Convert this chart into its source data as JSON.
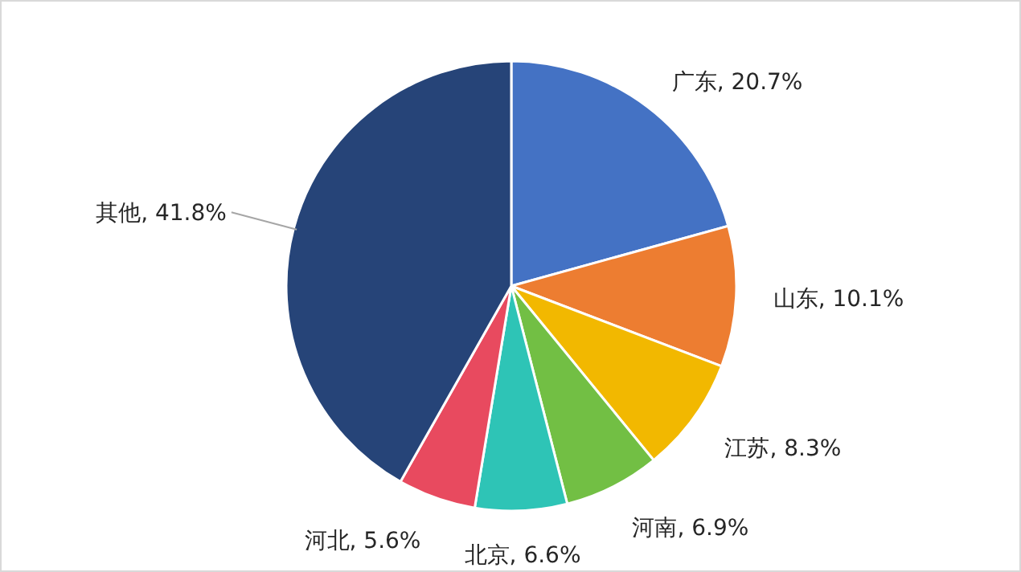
{
  "chart_data": {
    "type": "pie",
    "categories": [
      "广东",
      "山东",
      "江苏",
      "河南",
      "北京",
      "河北",
      "其他"
    ],
    "values": [
      20.7,
      10.1,
      8.3,
      6.9,
      6.6,
      5.6,
      41.8
    ],
    "value_labels": [
      ", 20.7%",
      ", 10.1%",
      ", 8.3%",
      ", 6.9%",
      ", 6.6%",
      ", 5.6%",
      ", 41.8%"
    ],
    "colors": [
      "#4472c4",
      "#ed7d31",
      "#f2b800",
      "#72bf44",
      "#2ec4b6",
      "#e84a5f",
      "#264478"
    ]
  }
}
